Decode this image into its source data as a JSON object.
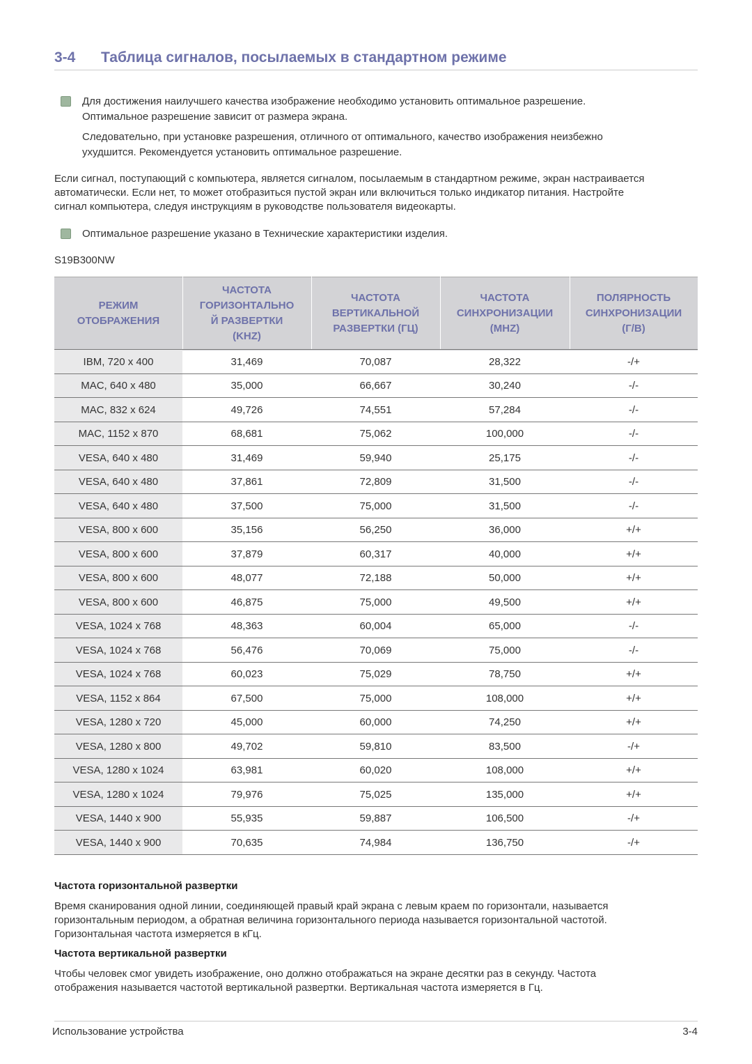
{
  "header": {
    "number": "3-4",
    "title": "Таблица сигналов, посылаемых в стандартном режиме"
  },
  "notes": [
    {
      "paragraphs": [
        [
          "Для достижения наилучшего качества изображение необходимо установить оптимальное разрешение.",
          "Оптимальное разрешение зависит от размера экрана."
        ],
        [
          "Следовательно, при установке разрешения, отличного от оптимального, качество изображения неизбежно",
          "ухудшится. Рекомендуется установить оптимальное разрешение."
        ]
      ]
    }
  ],
  "intro": [
    "Если сигнал, поступающий с компьютера, является сигналом, посылаемым в стандартном режиме, экран настраивается",
    "автоматически. Если нет, то может отобразиться пустой экран или включиться только индикатор питания. Настройте",
    "сигнал компьютера, следуя инструкциям в руководстве пользователя видеокарты."
  ],
  "note2": "Оптимальное разрешение указано в Технические характеристики изделия.",
  "model": "S19B300NW",
  "table": {
    "columns": [
      [
        "РЕЖИМ",
        "ОТОБРАЖЕНИЯ"
      ],
      [
        "ЧАСТОТА",
        "ГОРИЗОНТАЛЬНО",
        "Й РАЗВЕРТКИ",
        "(KHZ)"
      ],
      [
        "ЧАСТОТА",
        "ВЕРТИКАЛЬНОЙ",
        "РАЗВЕРТКИ (ГЦ)"
      ],
      [
        "ЧАСТОТА",
        "СИНХРОНИЗАЦИИ",
        "(MHZ)"
      ],
      [
        "ПОЛЯРНОСТЬ",
        "СИНХРОНИЗАЦИИ",
        "(Г/В)"
      ]
    ],
    "rows": [
      [
        "IBM, 720 x 400",
        "31,469",
        "70,087",
        "28,322",
        "-/+"
      ],
      [
        "MAC, 640 x 480",
        "35,000",
        "66,667",
        "30,240",
        "-/-"
      ],
      [
        "MAC, 832 x 624",
        "49,726",
        "74,551",
        "57,284",
        "-/-"
      ],
      [
        "MAC, 1152 x 870",
        "68,681",
        "75,062",
        "100,000",
        "-/-"
      ],
      [
        "VESA, 640 x 480",
        "31,469",
        "59,940",
        "25,175",
        "-/-"
      ],
      [
        "VESA, 640 x 480",
        "37,861",
        "72,809",
        "31,500",
        "-/-"
      ],
      [
        "VESA, 640 x 480",
        "37,500",
        "75,000",
        "31,500",
        "-/-"
      ],
      [
        "VESA, 800 x 600",
        "35,156",
        "56,250",
        "36,000",
        "+/+"
      ],
      [
        "VESA, 800 x 600",
        "37,879",
        "60,317",
        "40,000",
        "+/+"
      ],
      [
        "VESA, 800 x 600",
        "48,077",
        "72,188",
        "50,000",
        "+/+"
      ],
      [
        "VESA, 800 x 600",
        "46,875",
        "75,000",
        "49,500",
        "+/+"
      ],
      [
        "VESA, 1024 x 768",
        "48,363",
        "60,004",
        "65,000",
        "-/-"
      ],
      [
        "VESA, 1024 x 768",
        "56,476",
        "70,069",
        "75,000",
        "-/-"
      ],
      [
        "VESA, 1024 x 768",
        "60,023",
        "75,029",
        "78,750",
        "+/+"
      ],
      [
        "VESA, 1152 x 864",
        "67,500",
        "75,000",
        "108,000",
        "+/+"
      ],
      [
        "VESA, 1280 x 720",
        "45,000",
        "60,000",
        "74,250",
        "+/+"
      ],
      [
        "VESA, 1280 x 800",
        "49,702",
        "59,810",
        "83,500",
        "-/+"
      ],
      [
        "VESA, 1280 x 1024",
        "63,981",
        "60,020",
        "108,000",
        "+/+"
      ],
      [
        "VESA, 1280 x 1024",
        "79,976",
        "75,025",
        "135,000",
        "+/+"
      ],
      [
        "VESA, 1440 x 900",
        "55,935",
        "59,887",
        "106,500",
        "-/+"
      ],
      [
        "VESA, 1440 x 900",
        "70,635",
        "74,984",
        "136,750",
        "-/+"
      ]
    ]
  },
  "sections": [
    {
      "heading": "Частота горизонтальной развертки",
      "lines": [
        "Время сканирования одной линии, соединяющей правый край экрана с левым краем по горизонтали, называется",
        "горизонтальным периодом, а обратная величина горизонтального периода называется горизонтальной частотой.",
        "Горизонтальная частота измеряется в кГц."
      ]
    },
    {
      "heading": "Частота вертикальной развертки",
      "lines": [
        "Чтобы человек смог увидеть изображение, оно должно отображаться на экране десятки раз в секунду. Частота",
        "отображения называется частотой вертикальной развертки. Вертикальная частота измеряется в Гц."
      ]
    }
  ],
  "footer": {
    "left": "Использование устройства",
    "right": "3-4"
  }
}
